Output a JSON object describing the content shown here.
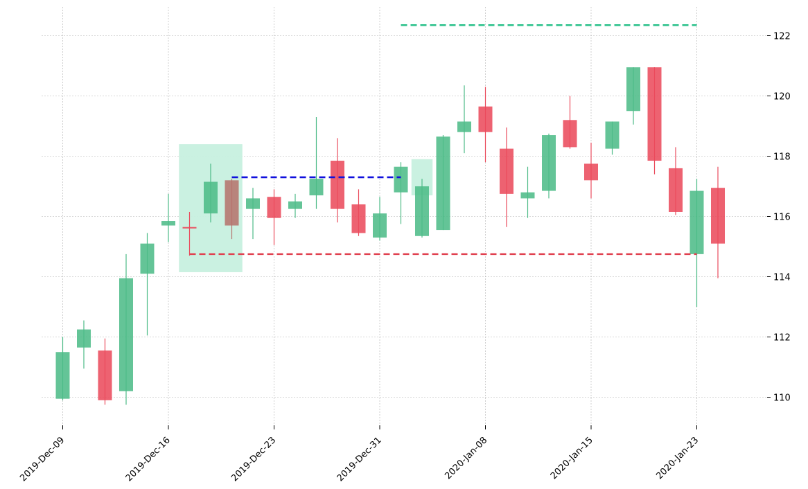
{
  "chart_data": {
    "type": "candlestick",
    "title": "",
    "xlabel": "",
    "ylabel": "",
    "ylim": [
      109.1,
      123.0
    ],
    "yticks": [
      110,
      112,
      114,
      116,
      118,
      120,
      122
    ],
    "x_tick_labels": [
      {
        "index": 0,
        "label": "2019-Dec-09"
      },
      {
        "index": 5,
        "label": "2019-Dec-16"
      },
      {
        "index": 10,
        "label": "2019-Dec-23"
      },
      {
        "index": 15,
        "label": "2019-Dec-31"
      },
      {
        "index": 20,
        "label": "2020-Jan-08"
      },
      {
        "index": 25,
        "label": "2020-Jan-15"
      },
      {
        "index": 30,
        "label": "2020-Jan-23"
      }
    ],
    "grid": true,
    "up_color": "#4dbb87",
    "down_color": "#ea4b5c",
    "highlight_color": "#c7f0df",
    "candles": [
      {
        "date": "2019-Dec-09",
        "open": 109.95,
        "high": 112.0,
        "low": 109.9,
        "close": 111.5
      },
      {
        "date": "2019-Dec-10",
        "open": 111.65,
        "high": 112.55,
        "low": 110.95,
        "close": 112.25
      },
      {
        "date": "2019-Dec-11",
        "open": 111.55,
        "high": 111.95,
        "low": 109.75,
        "close": 109.9
      },
      {
        "date": "2019-Dec-12",
        "open": 110.2,
        "high": 114.75,
        "low": 109.75,
        "close": 113.95
      },
      {
        "date": "2019-Dec-13",
        "open": 114.1,
        "high": 115.45,
        "low": 112.05,
        "close": 115.1
      },
      {
        "date": "2019-Dec-16",
        "open": 115.7,
        "high": 116.75,
        "low": 115.15,
        "close": 115.85
      },
      {
        "date": "2019-Dec-17",
        "open": 115.65,
        "high": 116.15,
        "low": 114.7,
        "close": 115.6
      },
      {
        "date": "2019-Dec-18",
        "open": 116.1,
        "high": 117.75,
        "low": 115.8,
        "close": 117.15
      },
      {
        "date": "2019-Dec-19",
        "open": 117.2,
        "high": 117.25,
        "low": 115.25,
        "close": 115.7
      },
      {
        "date": "2019-Dec-20",
        "open": 116.25,
        "high": 116.95,
        "low": 115.25,
        "close": 116.6
      },
      {
        "date": "2019-Dec-23",
        "open": 116.65,
        "high": 116.9,
        "low": 115.05,
        "close": 115.95
      },
      {
        "date": "2019-Dec-24",
        "open": 116.25,
        "high": 116.75,
        "low": 115.95,
        "close": 116.5
      },
      {
        "date": "2019-Dec-26",
        "open": 116.7,
        "high": 119.3,
        "low": 116.25,
        "close": 117.25
      },
      {
        "date": "2019-Dec-27",
        "open": 117.85,
        "high": 118.6,
        "low": 115.8,
        "close": 116.25
      },
      {
        "date": "2019-Dec-30",
        "open": 116.4,
        "high": 116.9,
        "low": 115.35,
        "close": 115.45
      },
      {
        "date": "2019-Dec-31",
        "open": 115.3,
        "high": 116.65,
        "low": 115.2,
        "close": 116.1
      },
      {
        "date": "2020-Jan-02",
        "open": 116.8,
        "high": 117.8,
        "low": 115.75,
        "close": 117.65
      },
      {
        "date": "2020-Jan-03",
        "open": 115.35,
        "high": 117.25,
        "low": 115.3,
        "close": 117.0
      },
      {
        "date": "2020-Jan-06",
        "open": 115.55,
        "high": 118.7,
        "low": 115.55,
        "close": 118.65
      },
      {
        "date": "2020-Jan-07",
        "open": 118.8,
        "high": 120.35,
        "low": 118.1,
        "close": 119.15
      },
      {
        "date": "2020-Jan-08",
        "open": 119.65,
        "high": 120.3,
        "low": 117.8,
        "close": 118.8
      },
      {
        "date": "2020-Jan-09",
        "open": 118.25,
        "high": 118.95,
        "low": 115.65,
        "close": 116.75
      },
      {
        "date": "2020-Jan-10",
        "open": 116.6,
        "high": 117.65,
        "low": 115.95,
        "close": 116.8
      },
      {
        "date": "2020-Jan-13",
        "open": 116.85,
        "high": 118.75,
        "low": 116.6,
        "close": 118.7
      },
      {
        "date": "2020-Jan-14",
        "open": 119.2,
        "high": 120.0,
        "low": 118.25,
        "close": 118.3
      },
      {
        "date": "2020-Jan-15",
        "open": 117.75,
        "high": 118.45,
        "low": 116.6,
        "close": 117.2
      },
      {
        "date": "2020-Jan-16",
        "open": 118.25,
        "high": 119.15,
        "low": 118.05,
        "close": 119.15
      },
      {
        "date": "2020-Jan-17",
        "open": 119.5,
        "high": 120.95,
        "low": 119.05,
        "close": 120.95
      },
      {
        "date": "2020-Jan-21",
        "open": 120.95,
        "high": 120.95,
        "low": 117.4,
        "close": 117.85
      },
      {
        "date": "2020-Jan-22",
        "open": 117.6,
        "high": 118.3,
        "low": 116.05,
        "close": 116.15
      },
      {
        "date": "2020-Jan-23",
        "open": 114.75,
        "high": 117.25,
        "low": 113.0,
        "close": 116.85
      },
      {
        "date": "2020-Jan-24",
        "open": 116.95,
        "high": 117.65,
        "low": 113.95,
        "close": 115.1
      }
    ],
    "highlighted_candle": {
      "index": 8,
      "color": "#b5736d"
    },
    "highlight_boxes": [
      {
        "x_from": 5.5,
        "x_to": 8.5,
        "y_from": 114.15,
        "y_to": 118.4
      },
      {
        "x_from": 16.5,
        "x_to": 17.5,
        "y_from": 116.7,
        "y_to": 117.9
      }
    ],
    "reference_lines": [
      {
        "y": 117.3,
        "x_from": 8,
        "x_to": 16,
        "color": "#1010dd",
        "style": "dashed"
      },
      {
        "y": 122.35,
        "x_from": 16,
        "x_to": 30,
        "color": "#2ec28c",
        "style": "dashed"
      },
      {
        "y": 114.75,
        "x_from": 6,
        "x_to": 30,
        "color": "#e0404f",
        "style": "dashed"
      }
    ]
  }
}
